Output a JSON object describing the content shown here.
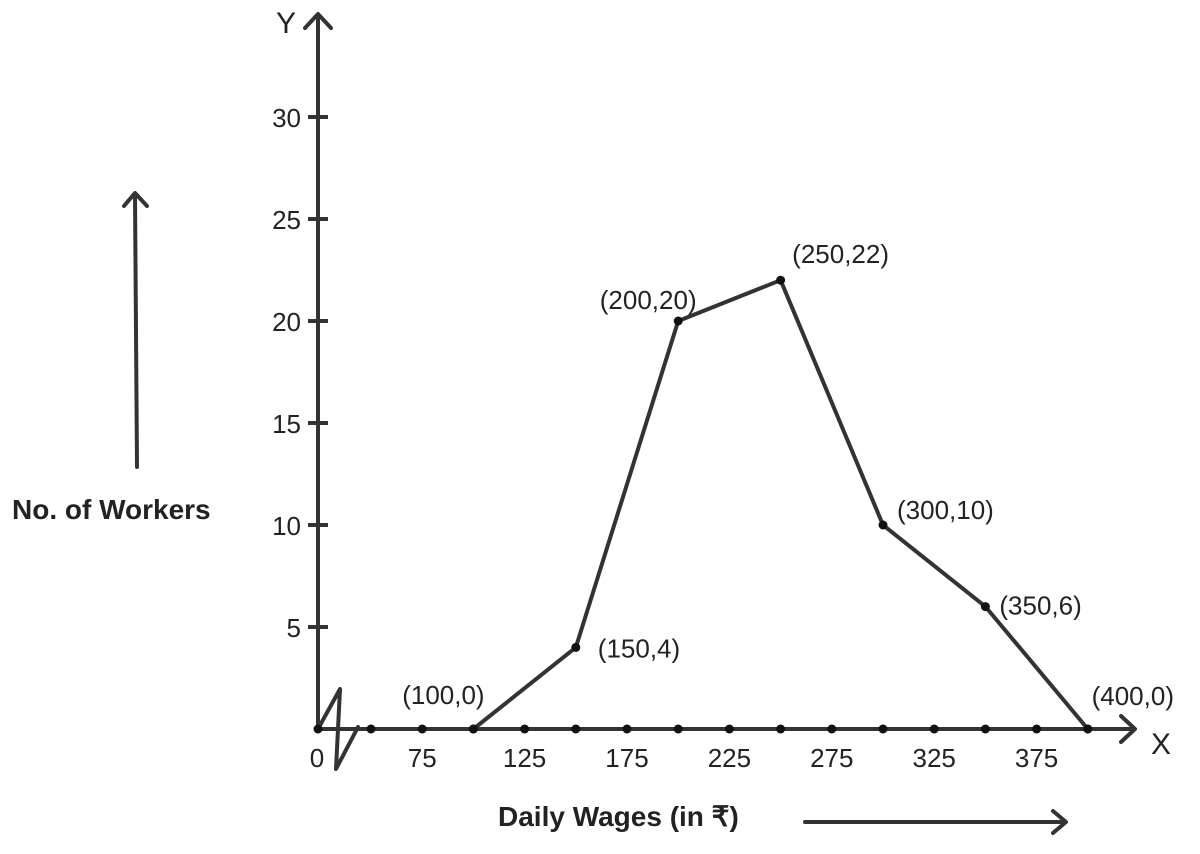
{
  "chart_data": {
    "type": "line",
    "title": "",
    "xlabel": "Daily Wages (in ₹)",
    "ylabel": "No. of Workers",
    "x_axis_letter": "X",
    "y_axis_letter": "Y",
    "origin_label": "0",
    "xlim": [
      50,
      420
    ],
    "ylim": [
      0,
      34
    ],
    "x_ticks": [
      75,
      125,
      175,
      225,
      275,
      325,
      375
    ],
    "x_tick_labels": [
      "75",
      "125",
      "175",
      "225",
      "275",
      "325",
      "375"
    ],
    "x_dot_positions": [
      50,
      75,
      100,
      125,
      150,
      175,
      200,
      225,
      250,
      275,
      300,
      325,
      350,
      375,
      400
    ],
    "y_ticks": [
      5,
      10,
      15,
      20,
      25,
      30
    ],
    "y_tick_labels": [
      "5",
      "10",
      "15",
      "20",
      "25",
      "30"
    ],
    "axis_break": true,
    "grid": false,
    "series": [
      {
        "x": [
          100,
          150,
          200,
          250,
          300,
          350,
          400
        ],
        "y": [
          0,
          4,
          20,
          22,
          10,
          6,
          0
        ],
        "point_labels": [
          "(100,0)",
          "(150,4)",
          "(200,20)",
          "(250,22)",
          "(300,10)",
          "(350,6)",
          "(400,0)"
        ]
      }
    ]
  },
  "colors": {
    "ink": "#333333",
    "text": "#222222",
    "background": "#ffffff"
  }
}
